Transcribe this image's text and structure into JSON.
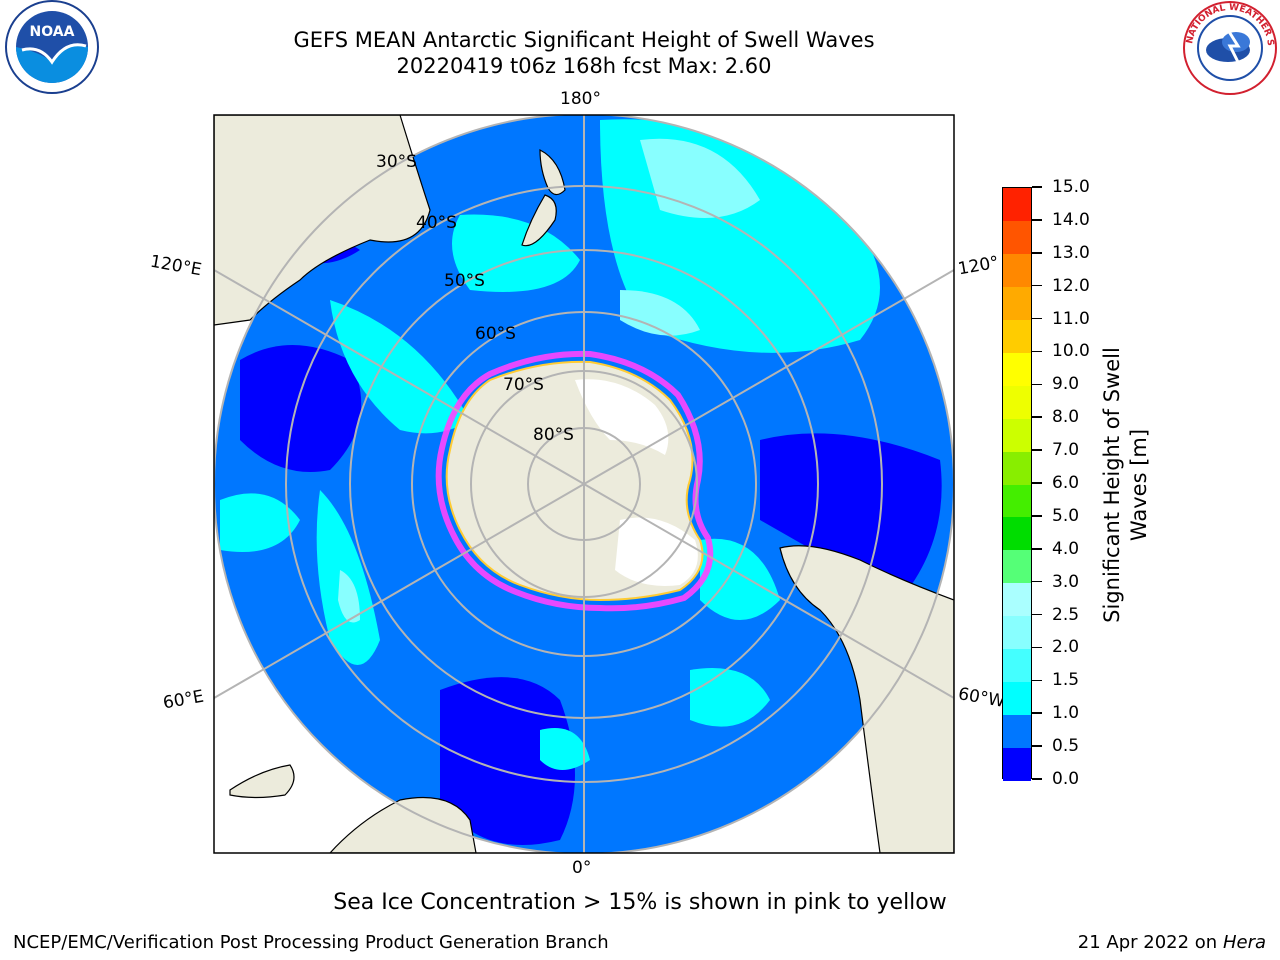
{
  "header": {
    "title": "GEFS MEAN Antarctic Significant Height of Swell Waves",
    "subtitle": "20220419 t06z 168h fcst   Max: 2.60"
  },
  "logos": {
    "left": {
      "name": "noaa-logo",
      "text": "NOAA"
    },
    "right": {
      "name": "nws-logo",
      "text": "NATIONAL WEATHER SERVICE"
    }
  },
  "map": {
    "projection": "south-polar-stereographic",
    "longitude_labels": {
      "top": "180°",
      "bottom": "0°",
      "left_upper": "120°E",
      "left_lower": "60°E",
      "right_upper": "120°",
      "right_lower": "60°W"
    },
    "latitude_labels": [
      "30°S",
      "40°S",
      "50°S",
      "60°S",
      "70°S",
      "80°S"
    ],
    "colors": {
      "land": "#ecebdc",
      "ice": "#ffffff",
      "grid": "#b4b4b4"
    }
  },
  "colorbar": {
    "title_line1": "Significant Height of Swell",
    "title_line2": "Waves [m]",
    "ticks": [
      "0.0",
      "0.5",
      "1.0",
      "1.5",
      "2.0",
      "2.5",
      "3.0",
      "4.0",
      "5.0",
      "6.0",
      "7.0",
      "8.0",
      "9.0",
      "10.0",
      "11.0",
      "12.0",
      "13.0",
      "14.0",
      "15.0"
    ],
    "colors": [
      "#0000ff",
      "#0077ff",
      "#00ffff",
      "#44ffff",
      "#88ffff",
      "#aaffff",
      "#55ff77",
      "#00dd00",
      "#44ee00",
      "#88ee00",
      "#ccff00",
      "#eeff00",
      "#ffff00",
      "#ffcc00",
      "#ffaa00",
      "#ff8800",
      "#ff5500",
      "#ff2200"
    ]
  },
  "note": "Sea Ice Concentration > 15% is shown in pink to yellow",
  "footer": {
    "left": "NCEP/EMC/Verification Post Processing Product Generation Branch",
    "right_prefix": "21 Apr 2022 on ",
    "right_host": "Hera"
  }
}
